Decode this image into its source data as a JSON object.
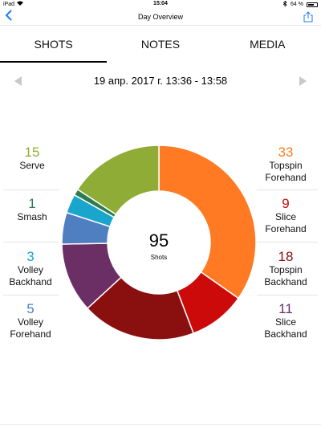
{
  "status_bar": {
    "device": "iPad",
    "time": "15:04",
    "battery": "64 %"
  },
  "navbar": {
    "title": "Day Overview",
    "back_icon": "chevron-left-icon",
    "share_icon": "share-icon"
  },
  "tabs": [
    {
      "label": "SHOTS",
      "active": true
    },
    {
      "label": "NOTES",
      "active": false
    },
    {
      "label": "MEDIA",
      "active": false
    }
  ],
  "date_range": "19 апр. 2017 г.  13:36 - 13:58",
  "center": {
    "total": "95",
    "label": "Shots"
  },
  "left_legend": [
    {
      "count": "15",
      "label": "Serve",
      "color": "#8fad36"
    },
    {
      "count": "1",
      "label": "Smash",
      "color": "#2e7d4f"
    },
    {
      "count": "3",
      "label": "Volley Backhand",
      "color": "#1aa5cc"
    },
    {
      "count": "5",
      "label": "Volley Forehand",
      "color": "#4f7fc0"
    }
  ],
  "right_legend": [
    {
      "count": "33",
      "label": "Topspin Forehand",
      "color": "#ff7a22"
    },
    {
      "count": "9",
      "label": "Slice Forehand",
      "color": "#cc0a0a"
    },
    {
      "count": "18",
      "label": "Topspin Backhand",
      "color": "#8a0f0f"
    },
    {
      "count": "11",
      "label": "Slice Backhand",
      "color": "#6b2f66"
    }
  ],
  "chart_data": {
    "type": "pie",
    "categories": [
      "Topspin Forehand",
      "Slice Forehand",
      "Topspin Backhand",
      "Slice Backhand",
      "Volley Forehand",
      "Volley Backhand",
      "Smash",
      "Serve"
    ],
    "values": [
      33,
      9,
      18,
      11,
      5,
      3,
      1,
      15
    ],
    "colors": [
      "#ff7a22",
      "#cc0a0a",
      "#8a0f0f",
      "#6b2f66",
      "#4f7fc0",
      "#1aa5cc",
      "#2e7d4f",
      "#8fad36"
    ],
    "title": "",
    "legend": "left-and-right"
  }
}
